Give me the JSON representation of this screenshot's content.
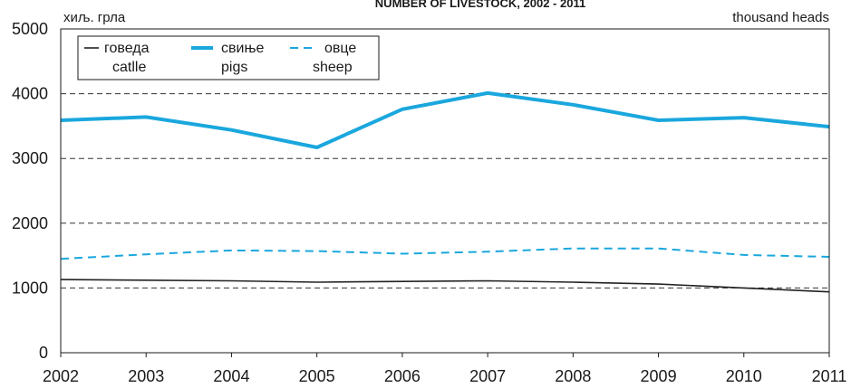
{
  "chart_data": {
    "type": "line",
    "title": "NUMBER OF LIVESTOCK, 2002 - 2011",
    "unit_left": "хиљ. грла",
    "unit_right": "thousand heads",
    "x": [
      2002,
      2003,
      2004,
      2005,
      2006,
      2007,
      2008,
      2009,
      2010,
      2011
    ],
    "ylim": [
      0,
      5000
    ],
    "yticks": [
      0,
      1000,
      2000,
      3000,
      4000,
      5000
    ],
    "grid": "dashed horizontal at 1000-4000",
    "legend_position": "top-left",
    "series": [
      {
        "key": "cattle",
        "name_sr": "говеда",
        "name_en": "catlle",
        "color": "#222222",
        "style": "solid-thin",
        "values": [
          1130,
          1120,
          1110,
          1090,
          1100,
          1110,
          1090,
          1060,
          1000,
          940
        ]
      },
      {
        "key": "pigs",
        "name_sr": "свиње",
        "name_en": "pigs",
        "color": "#1aa7dd",
        "style": "solid-thick",
        "values": [
          3590,
          3640,
          3440,
          3170,
          3760,
          4010,
          3830,
          3590,
          3630,
          3490
        ]
      },
      {
        "key": "sheep",
        "name_sr": "овце",
        "name_en": "sheep",
        "color": "#1aa7dd",
        "style": "dashed",
        "values": [
          1450,
          1520,
          1580,
          1570,
          1530,
          1560,
          1610,
          1610,
          1510,
          1480
        ]
      }
    ]
  }
}
